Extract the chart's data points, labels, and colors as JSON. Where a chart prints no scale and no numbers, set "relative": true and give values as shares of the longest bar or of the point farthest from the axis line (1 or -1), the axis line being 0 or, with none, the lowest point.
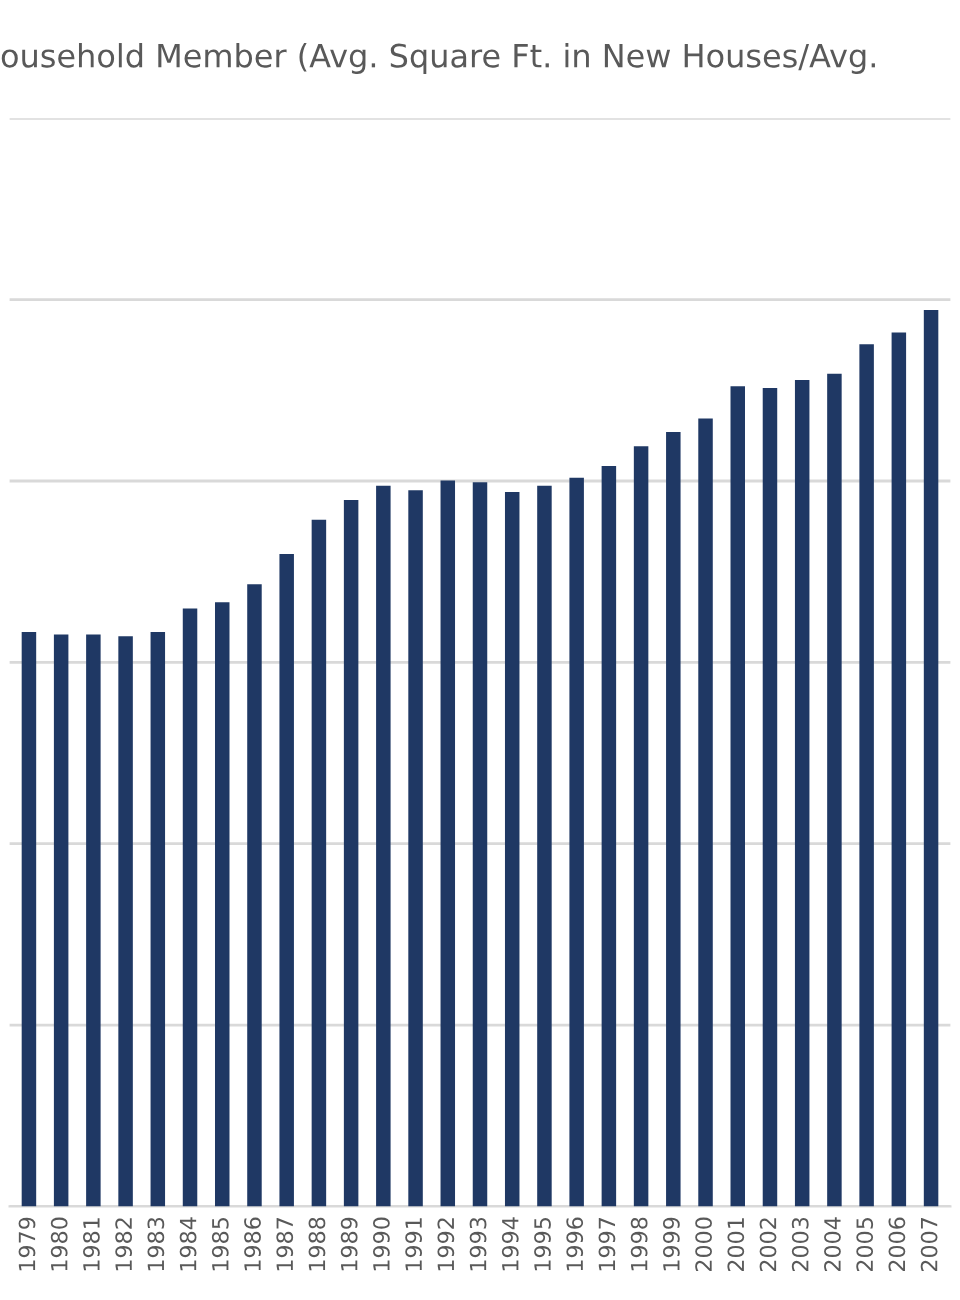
{
  "chart_data": {
    "type": "bar",
    "title": "ousehold Member (Avg. Square Ft. in New Houses/Avg.",
    "relative": true,
    "grid": "y",
    "categories": [
      "1979",
      "1980",
      "1981",
      "1982",
      "1983",
      "1984",
      "1985",
      "1986",
      "1987",
      "1988",
      "1989",
      "1990",
      "1991",
      "1992",
      "1993",
      "1994",
      "1995",
      "1996",
      "1997",
      "1998",
      "1999",
      "2000",
      "2001",
      "2002",
      "2003",
      "2004",
      "2005",
      "2006",
      "2007"
    ],
    "color": "#1f3864",
    "values": [
      0.641,
      0.638,
      0.638,
      0.636,
      0.641,
      0.667,
      0.674,
      0.694,
      0.728,
      0.766,
      0.788,
      0.804,
      0.799,
      0.81,
      0.808,
      0.797,
      0.804,
      0.813,
      0.826,
      0.848,
      0.864,
      0.879,
      0.915,
      0.913,
      0.922,
      0.929,
      0.962,
      0.975,
      1
    ]
  }
}
